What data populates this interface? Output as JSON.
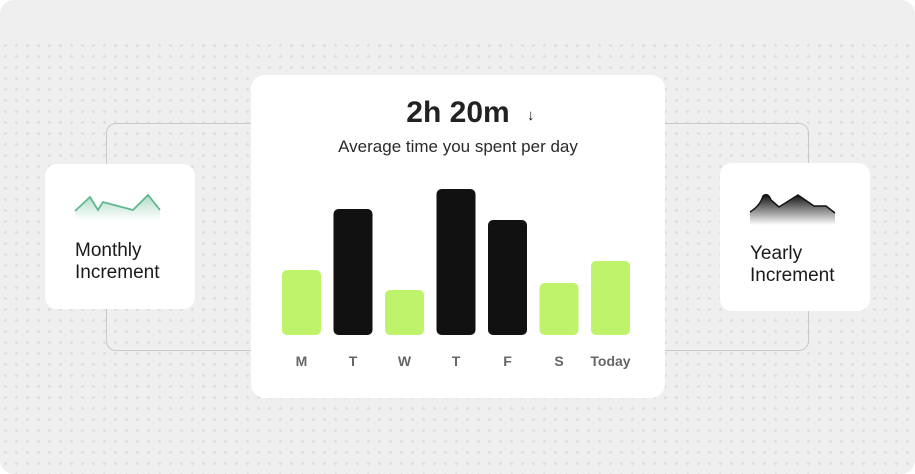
{
  "monthly_card": {
    "label_line1": "Monthly",
    "label_line2": "Increment",
    "sparkline_color": "#5fb88e"
  },
  "yearly_card": {
    "label_line1": "Yearly",
    "label_line2": "Increment",
    "sparkline_color": "#1a1a1a"
  },
  "main_card": {
    "headline": "2h 20m",
    "trend_icon": "arrow-down-icon",
    "trend_glyph": "↓",
    "subtitle": "Average time you spent per day"
  },
  "chart_data": {
    "type": "bar",
    "categories": [
      "M",
      "T",
      "W",
      "T",
      "F",
      "S",
      "Today"
    ],
    "values": [
      65,
      126,
      45,
      146,
      115,
      52,
      74
    ],
    "colors": [
      "#bff36b",
      "#111111",
      "#bff36b",
      "#111111",
      "#111111",
      "#bff36b",
      "#bff36b"
    ],
    "grid": false
  }
}
